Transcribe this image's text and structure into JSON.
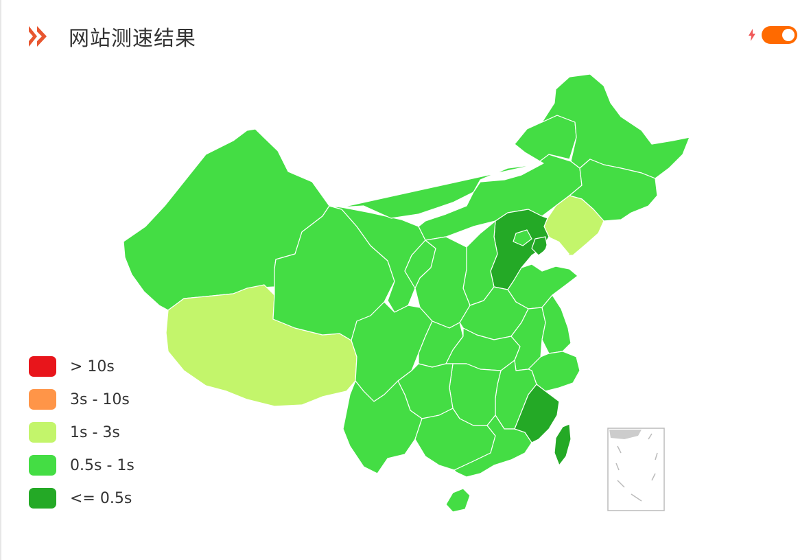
{
  "header": {
    "title": "网站测速结果",
    "toggle_on": true
  },
  "legend": [
    {
      "label": "> 10s",
      "color": "#e8151b"
    },
    {
      "label": "3s - 10s",
      "color": "#ff9548"
    },
    {
      "label": "1s - 3s",
      "color": "#c3f56b"
    },
    {
      "label": "0.5s - 1s",
      "color": "#44dd44"
    },
    {
      "label": "<= 0.5s",
      "color": "#24a926"
    }
  ],
  "colors": {
    "accent": "#ff6a00",
    "border": "#ffffff",
    "inset_border": "#bbbbbb"
  },
  "map_regions": [
    {
      "name": "xinjiang",
      "class": "0.5s - 1s"
    },
    {
      "name": "xizang",
      "class": "1s - 3s"
    },
    {
      "name": "qinghai",
      "class": "0.5s - 1s"
    },
    {
      "name": "gansu",
      "class": "0.5s - 1s"
    },
    {
      "name": "neimenggu",
      "class": "0.5s - 1s"
    },
    {
      "name": "heilongjiang",
      "class": "0.5s - 1s"
    },
    {
      "name": "jilin",
      "class": "0.5s - 1s"
    },
    {
      "name": "liaoning",
      "class": "1s - 3s"
    },
    {
      "name": "hebei",
      "class": "<= 0.5s"
    },
    {
      "name": "tianjin",
      "class": "<= 0.5s"
    },
    {
      "name": "beijing",
      "class": "0.5s - 1s"
    },
    {
      "name": "shandong",
      "class": "0.5s - 1s"
    },
    {
      "name": "shanxi",
      "class": "0.5s - 1s"
    },
    {
      "name": "shaanxi",
      "class": "0.5s - 1s"
    },
    {
      "name": "ningxia",
      "class": "0.5s - 1s"
    },
    {
      "name": "henan",
      "class": "0.5s - 1s"
    },
    {
      "name": "sichuan",
      "class": "0.5s - 1s"
    },
    {
      "name": "chongqing",
      "class": "0.5s - 1s"
    },
    {
      "name": "hubei",
      "class": "0.5s - 1s"
    },
    {
      "name": "anhui",
      "class": "0.5s - 1s"
    },
    {
      "name": "jiangsu",
      "class": "0.5s - 1s"
    },
    {
      "name": "zhejiang",
      "class": "0.5s - 1s"
    },
    {
      "name": "jiangxi",
      "class": "0.5s - 1s"
    },
    {
      "name": "hunan",
      "class": "0.5s - 1s"
    },
    {
      "name": "guizhou",
      "class": "0.5s - 1s"
    },
    {
      "name": "yunnan",
      "class": "0.5s - 1s"
    },
    {
      "name": "guangxi",
      "class": "0.5s - 1s"
    },
    {
      "name": "guangdong",
      "class": "0.5s - 1s"
    },
    {
      "name": "fujian",
      "class": "<= 0.5s"
    },
    {
      "name": "taiwan",
      "class": "<= 0.5s"
    },
    {
      "name": "hainan",
      "class": "0.5s - 1s"
    }
  ]
}
